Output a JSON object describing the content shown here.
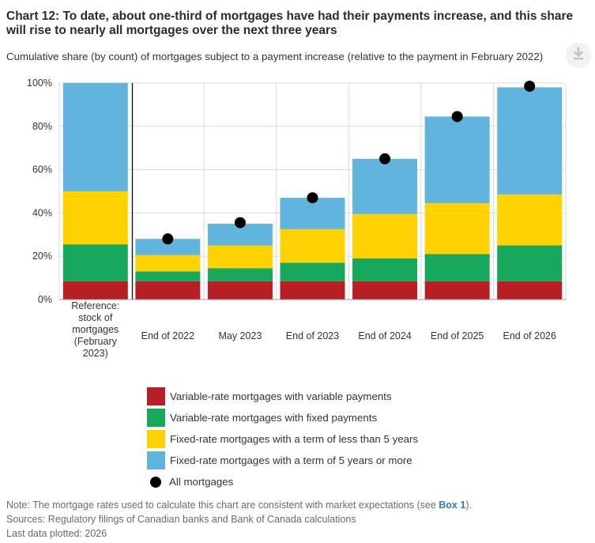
{
  "title": "Chart 12: To date, about one-third of mortgages have had their payments increase, and this share will rise to nearly all mortgages over the next three years",
  "subtitle": "Cumulative share (by count) of mortgages subject to a payment increase (relative to the payment in February 2022)",
  "download_icon": "download-icon",
  "colors": {
    "variable_variable": "#b81f24",
    "variable_fixed": "#17a85b",
    "fixed_short": "#ffd200",
    "fixed_long": "#61b4dd",
    "all": "#000000"
  },
  "chart_data": {
    "type": "bar",
    "stacked": true,
    "categories": [
      "Reference: stock of mortgages (February 2023)",
      "End of 2022",
      "May 2023",
      "End of 2023",
      "End of 2024",
      "End of 2025",
      "End of 2026"
    ],
    "series": [
      {
        "name": "Variable-rate mortgages with variable payments",
        "values": [
          8.5,
          8.5,
          8.5,
          8.5,
          8.5,
          8.5,
          8.5
        ]
      },
      {
        "name": "Variable-rate mortgages with fixed payments",
        "values": [
          17,
          4.5,
          6,
          8.5,
          10.5,
          12.5,
          16.5
        ]
      },
      {
        "name": "Fixed-rate mortgages with a term of less than 5 years",
        "values": [
          24.5,
          7.5,
          10.5,
          15.5,
          20.5,
          23.5,
          23.5
        ]
      },
      {
        "name": "Fixed-rate mortgages with a term of 5 years or more",
        "values": [
          50,
          7.5,
          10,
          14.5,
          25.5,
          40,
          49.5
        ]
      },
      {
        "name": "All mortgages",
        "type": "scatter",
        "values": [
          null,
          28,
          35.5,
          47,
          65,
          84.5,
          98.5
        ]
      }
    ],
    "yticks": [
      "0%",
      "20%",
      "40%",
      "60%",
      "80%",
      "100%"
    ],
    "ylim": [
      0,
      100
    ],
    "reference_separator_after": "Reference: stock of mortgages (February 2023)",
    "grid": true,
    "legend_position": "bottom"
  },
  "x_labels": [
    "Reference:\nstock of\nmortgages\n(February\n2023)",
    "End of 2022",
    "May 2023",
    "End of 2023",
    "End of 2024",
    "End of 2025",
    "End of 2026"
  ],
  "legend": [
    {
      "label": "Variable-rate mortgages with variable payments",
      "color": "#b81f24"
    },
    {
      "label": "Variable-rate mortgages with fixed payments",
      "color": "#17a85b"
    },
    {
      "label": "Fixed-rate mortgages with a term of less than 5 years",
      "color": "#ffd200"
    },
    {
      "label": "Fixed-rate mortgages with a term of 5 years or more",
      "color": "#61b4dd"
    },
    {
      "label": "All mortgages",
      "color": "#000000"
    }
  ],
  "notes": {
    "note_prefix": "Note: The mortgage rates used to calculate this chart are consistent with market expectations (see ",
    "note_link": "Box 1",
    "note_suffix": ").",
    "sources": "Sources: Regulatory filings of Canadian banks and Bank of Canada calculations",
    "last_plotted": "Last data plotted: 2026"
  }
}
